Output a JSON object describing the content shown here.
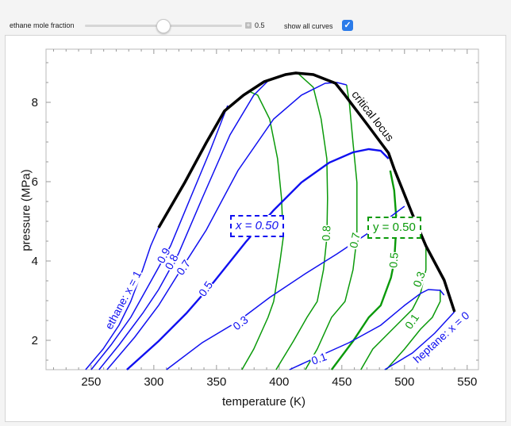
{
  "controls": {
    "slider_label": "ethane mole fraction",
    "slider_value": 0.5,
    "slider_value_text": "0.5",
    "checkbox_label": "show all curves",
    "checkbox_checked": true,
    "plus_icon": "plus-icon"
  },
  "colors": {
    "bubble": "#1010f0",
    "dew": "#0a9a0a",
    "critical": "#000000"
  },
  "chart_data": {
    "type": "line",
    "xlabel": "temperature (K)",
    "ylabel": "pressure (MPa)",
    "xlim": [
      214,
      559
    ],
    "ylim": [
      1.26,
      9.34
    ],
    "x_ticks": [
      "250",
      "300",
      "350",
      "400",
      "450",
      "500",
      "550"
    ],
    "y_ticks": [
      "2",
      "4",
      "6",
      "8"
    ],
    "grid": false,
    "critical_locus": {
      "label": "critical locus",
      "points": [
        [
          303.8,
          4.84
        ],
        [
          324.7,
          5.98
        ],
        [
          341.8,
          6.98
        ],
        [
          356.3,
          7.78
        ],
        [
          371.5,
          8.18
        ],
        [
          388.0,
          8.52
        ],
        [
          405.1,
          8.7
        ],
        [
          413.3,
          8.74
        ],
        [
          427.2,
          8.7
        ],
        [
          444.9,
          8.48
        ],
        [
          452,
          8.2
        ],
        [
          470.3,
          7.44
        ],
        [
          487.3,
          6.72
        ],
        [
          491.8,
          6.32
        ],
        [
          506.3,
          5.18
        ],
        [
          517.1,
          4.38
        ],
        [
          531.6,
          3.52
        ],
        [
          539.9,
          2.72
        ]
      ]
    },
    "bubble_curves": [
      {
        "x": 1,
        "label": "ethane: x = 1",
        "points": [
          [
            245.6,
            1.26
          ],
          [
            259.5,
            1.78
          ],
          [
            272.2,
            2.38
          ],
          [
            281.6,
            2.98
          ],
          [
            291.1,
            3.78
          ],
          [
            297.5,
            4.38
          ],
          [
            303.8,
            4.84
          ]
        ]
      },
      {
        "x": 0.9,
        "label": "0.9",
        "points": [
          [
            250,
            1.26
          ],
          [
            265.8,
            1.88
          ],
          [
            281.6,
            2.58
          ],
          [
            297.5,
            3.48
          ],
          [
            313.3,
            4.38
          ],
          [
            329.1,
            5.58
          ],
          [
            344.9,
            6.78
          ],
          [
            358.9,
            7.92
          ]
        ]
      },
      {
        "x": 0.8,
        "label": "0.8",
        "points": [
          [
            256.3,
            1.26
          ],
          [
            272.2,
            1.88
          ],
          [
            291.1,
            2.68
          ],
          [
            303.8,
            3.28
          ],
          [
            319.6,
            4.18
          ],
          [
            338.6,
            5.58
          ],
          [
            360.8,
            7.18
          ],
          [
            379.7,
            8.18
          ],
          [
            392.4,
            8.58
          ]
        ]
      },
      {
        "x": 0.7,
        "label": "0.7",
        "points": [
          [
            262.7,
            1.26
          ],
          [
            284.8,
            2.08
          ],
          [
            303.8,
            2.88
          ],
          [
            319.6,
            3.68
          ],
          [
            341.8,
            4.78
          ],
          [
            367.1,
            6.28
          ],
          [
            395.6,
            7.58
          ],
          [
            417.7,
            8.18
          ],
          [
            436.7,
            8.48
          ],
          [
            446.2,
            8.5
          ],
          [
            453.8,
            8.44
          ]
        ]
      },
      {
        "x": 0.5,
        "label": "0.5",
        "selected": true,
        "points": [
          [
            278.5,
            1.26
          ],
          [
            303.8,
            1.98
          ],
          [
            325.9,
            2.68
          ],
          [
            348.1,
            3.48
          ],
          [
            373.4,
            4.48
          ],
          [
            395.6,
            5.28
          ],
          [
            417.7,
            5.98
          ],
          [
            439.9,
            6.48
          ],
          [
            458.9,
            6.74
          ],
          [
            471.5,
            6.82
          ],
          [
            481.0,
            6.78
          ],
          [
            487.3,
            6.58
          ]
        ]
      },
      {
        "x": 0.3,
        "label": "0.3",
        "points": [
          [
            310.1,
            1.26
          ],
          [
            338.6,
            1.94
          ],
          [
            367.1,
            2.48
          ],
          [
            392.4,
            3.08
          ],
          [
            420.9,
            3.68
          ],
          [
            446.2,
            4.18
          ],
          [
            474.7,
            4.78
          ],
          [
            500.0,
            5.38
          ]
        ]
      },
      {
        "x": 0.1,
        "label": "0.1",
        "points": [
          [
            408.2,
            1.26
          ],
          [
            430.4,
            1.58
          ],
          [
            455.7,
            1.94
          ],
          [
            481.0,
            2.38
          ],
          [
            500.0,
            2.88
          ],
          [
            512.7,
            3.18
          ],
          [
            519.0,
            3.28
          ],
          [
            528.5,
            3.26
          ],
          [
            531.6,
            3.14
          ]
        ]
      },
      {
        "x": 0,
        "label": "heptane: x = 0",
        "points": [
          [
            484.2,
            1.26
          ],
          [
            506.3,
            1.68
          ],
          [
            524.1,
            2.18
          ],
          [
            539.9,
            2.72
          ]
        ]
      }
    ],
    "dew_curves": [
      {
        "y": 0.9,
        "label": "",
        "points": [
          [
            377.2,
            8.26
          ],
          [
            382.9,
            8.18
          ],
          [
            392.4,
            7.58
          ],
          [
            398.7,
            6.58
          ],
          [
            401.9,
            5.58
          ],
          [
            403.2,
            4.58
          ],
          [
            400.6,
            3.98
          ],
          [
            395.6,
            2.98
          ],
          [
            391.1,
            2.58
          ],
          [
            379.7,
            1.78
          ],
          [
            370.3,
            1.26
          ]
        ]
      },
      {
        "y": 0.8,
        "label": "0.8",
        "points": [
          [
            414.6,
            8.74
          ],
          [
            427.2,
            8.38
          ],
          [
            433.5,
            7.58
          ],
          [
            438.0,
            6.58
          ],
          [
            438.6,
            5.58
          ],
          [
            438.0,
            4.58
          ],
          [
            435.4,
            3.78
          ],
          [
            430.4,
            2.98
          ],
          [
            422.2,
            2.58
          ],
          [
            411.4,
            1.98
          ],
          [
            397.5,
            1.26
          ]
        ]
      },
      {
        "y": 0.7,
        "label": "0.7",
        "points": [
          [
            453.8,
            8.44
          ],
          [
            456,
            7.98
          ],
          [
            458.9,
            6.98
          ],
          [
            462.0,
            5.98
          ],
          [
            462.0,
            4.58
          ],
          [
            458.9,
            3.78
          ],
          [
            452.5,
            2.98
          ],
          [
            441.8,
            2.58
          ],
          [
            430.4,
            1.78
          ],
          [
            420.9,
            1.26
          ]
        ]
      },
      {
        "y": 0.5,
        "label": "0.5",
        "selected": true,
        "points": [
          [
            488.6,
            6.28
          ],
          [
            491.8,
            5.78
          ],
          [
            493.7,
            4.98
          ],
          [
            491.8,
            3.98
          ],
          [
            489.2,
            3.58
          ],
          [
            481.0,
            2.88
          ],
          [
            471.5,
            2.58
          ],
          [
            458.9,
            1.98
          ],
          [
            449.4,
            1.58
          ],
          [
            441.8,
            1.26
          ]
        ]
      },
      {
        "y": 0.3,
        "label": "0.3",
        "points": [
          [
            517.1,
            4.38
          ],
          [
            517.1,
            3.78
          ],
          [
            512.7,
            3.18
          ],
          [
            506.3,
            2.78
          ],
          [
            496.8,
            2.48
          ],
          [
            487.3,
            2.18
          ],
          [
            474.7,
            1.78
          ],
          [
            465.2,
            1.26
          ]
        ]
      },
      {
        "y": 0.1,
        "label": "0.1",
        "points": [
          [
            528.5,
            3.28
          ],
          [
            528.5,
            2.98
          ],
          [
            522.2,
            2.58
          ],
          [
            512.7,
            2.28
          ],
          [
            500.0,
            1.78
          ],
          [
            485.4,
            1.26
          ]
        ]
      }
    ],
    "annotations": {
      "x_box": "x = 0.50",
      "y_box": "y = 0.50"
    }
  }
}
